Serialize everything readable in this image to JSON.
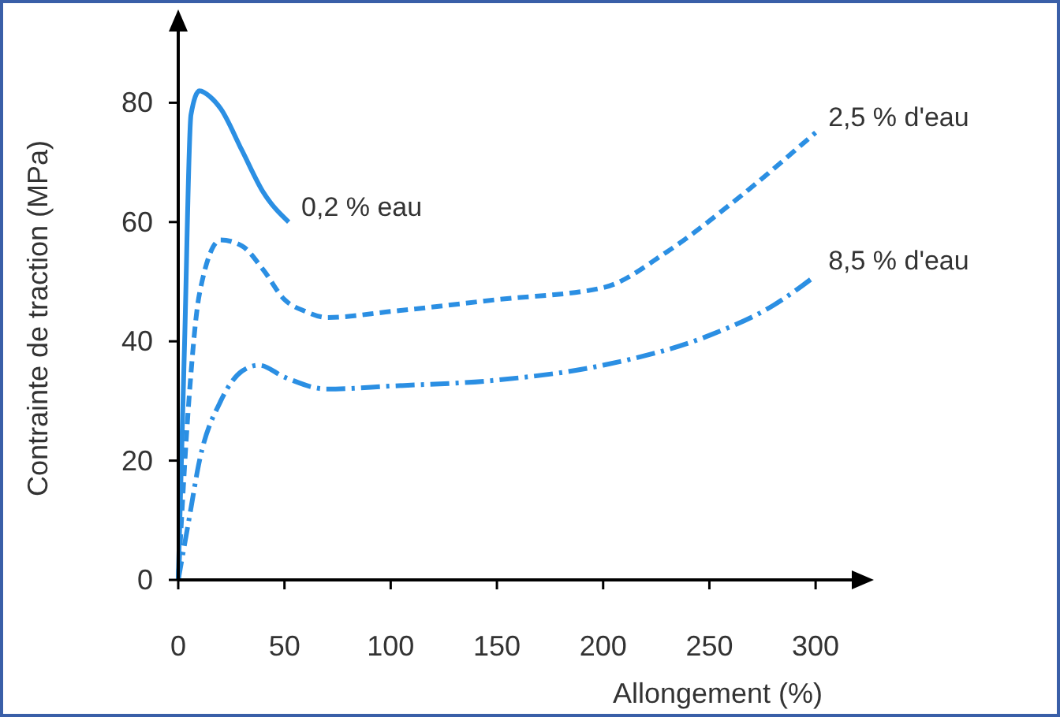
{
  "chart_data": {
    "type": "line",
    "xlabel": "Allongement (%)",
    "ylabel": "Contrainte de traction (MPa)",
    "xlim": [
      0,
      320
    ],
    "ylim": [
      0,
      93
    ],
    "xticks": [
      0,
      50,
      100,
      150,
      200,
      250,
      300
    ],
    "yticks": [
      0,
      20,
      40,
      60,
      80
    ],
    "grid": false,
    "marker": "none",
    "series": [
      {
        "name": "0,2 % eau",
        "color": "#2b8fe3",
        "line_style": "solid",
        "x": [
          0,
          3,
          6,
          10,
          15,
          20,
          30,
          40,
          52
        ],
        "values": [
          0,
          40,
          78,
          82,
          81,
          79,
          72,
          65,
          60
        ]
      },
      {
        "name": "2,5 % d'eau",
        "color": "#2b8fe3",
        "line_style": "dashed",
        "x": [
          0,
          5,
          10,
          20,
          30,
          40,
          50,
          60,
          70,
          100,
          150,
          200,
          230,
          260,
          300
        ],
        "values": [
          0,
          30,
          48,
          57,
          56,
          52,
          47,
          45,
          44,
          45,
          47,
          49,
          55,
          63,
          75
        ]
      },
      {
        "name": "8,5 % d'eau",
        "color": "#2b8fe3",
        "line_style": "dashdot",
        "x": [
          0,
          5,
          10,
          20,
          30,
          38,
          50,
          70,
          100,
          150,
          200,
          250,
          280,
          300
        ],
        "values": [
          0,
          10,
          20,
          30,
          35,
          36,
          34,
          32,
          32.5,
          33.5,
          36,
          41,
          46,
          51
        ]
      }
    ]
  }
}
